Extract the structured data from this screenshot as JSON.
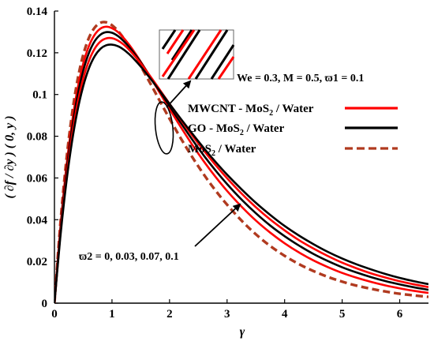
{
  "chart_data": {
    "type": "line",
    "xlabel": "γ",
    "ylabel": "( ∂f / ∂y ) ( 0, y )",
    "xlim": [
      0,
      6.5
    ],
    "ylim": [
      0,
      0.14
    ],
    "xticks": [
      "0",
      "1",
      "2",
      "3",
      "4",
      "5",
      "6"
    ],
    "yticks": [
      "0",
      "0.02",
      "0.04",
      "0.06",
      "0.08",
      "0.1",
      "0.12",
      "0.14"
    ],
    "grid": false,
    "legend_position": "top-right",
    "annotation_params": "We = 0.3, M = 0.5, ϖ1 = 0.1",
    "annotation_varpi2": "ϖ2 = 0, 0.03, 0.07, 0.1",
    "legend": [
      {
        "label": "MWCNT - MoS2 / Water",
        "color": "#ff0000",
        "style": "solid"
      },
      {
        "label": "GO - MoS2 / Water",
        "color": "#000000",
        "style": "solid"
      },
      {
        "label": "MoS2 / Water",
        "color": "#b03a1f",
        "style": "dashed"
      }
    ],
    "x": [
      0,
      0.1,
      0.2,
      0.3,
      0.4,
      0.5,
      0.6,
      0.7,
      0.8,
      0.9,
      1.0,
      1.1,
      1.2,
      1.3,
      1.4,
      1.5,
      1.6,
      1.7,
      1.8,
      1.9,
      2.0,
      2.2,
      2.4,
      2.6,
      2.8,
      3.0,
      3.25,
      3.5,
      3.75,
      4.0,
      4.25,
      4.5,
      4.75,
      5.0,
      5.25,
      5.5,
      5.75,
      6.0,
      6.25,
      6.5
    ],
    "series": [
      {
        "color": "#b03a1f",
        "style": "dashed",
        "values": [
          0.0,
          0.0371,
          0.0667,
          0.0896,
          0.1068,
          0.119,
          0.1272,
          0.1321,
          0.1344,
          0.1346,
          0.1332,
          0.1306,
          0.1271,
          0.123,
          0.1185,
          0.1136,
          0.1086,
          0.1036,
          0.0985,
          0.0934,
          0.0884,
          0.0788,
          0.0698,
          0.0615,
          0.054,
          0.0472,
          0.0396,
          0.033,
          0.0274,
          0.0227,
          0.0187,
          0.0154,
          0.0126,
          0.0103,
          0.0084,
          0.0069,
          0.0056,
          0.0045,
          0.0037,
          0.003
        ]
      },
      {
        "color": "#ff0000",
        "style": "solid",
        "values": [
          0.0,
          0.0351,
          0.0634,
          0.0856,
          0.1025,
          0.1148,
          0.1233,
          0.1287,
          0.1316,
          0.1325,
          0.1318,
          0.13,
          0.1272,
          0.1238,
          0.1199,
          0.1157,
          0.1113,
          0.1068,
          0.1022,
          0.0976,
          0.0931,
          0.0842,
          0.0757,
          0.0678,
          0.0605,
          0.0538,
          0.0463,
          0.0396,
          0.0338,
          0.0287,
          0.0243,
          0.0205,
          0.0173,
          0.0145,
          0.0122,
          0.0102,
          0.0085,
          0.0071,
          0.0059,
          0.0049
        ]
      },
      {
        "color": "#000000",
        "style": "solid",
        "values": [
          0.0,
          0.0337,
          0.061,
          0.0826,
          0.0992,
          0.1114,
          0.12,
          0.1256,
          0.1287,
          0.1299,
          0.1296,
          0.1281,
          0.1257,
          0.1227,
          0.1192,
          0.1154,
          0.1113,
          0.1072,
          0.1029,
          0.0987,
          0.0945,
          0.0862,
          0.0782,
          0.0706,
          0.0636,
          0.0571,
          0.0497,
          0.0431,
          0.0372,
          0.0321,
          0.0276,
          0.0236,
          0.0202,
          0.0172,
          0.0147,
          0.0125,
          0.0106,
          0.009,
          0.0076,
          0.0064
        ]
      },
      {
        "color": "#ff0000",
        "style": "solid",
        "values": [
          0.0,
          0.0322,
          0.0585,
          0.0794,
          0.0955,
          0.1076,
          0.1162,
          0.122,
          0.1254,
          0.1269,
          0.127,
          0.1259,
          0.124,
          0.1214,
          0.1183,
          0.1149,
          0.1112,
          0.1074,
          0.1035,
          0.0995,
          0.0956,
          0.0878,
          0.0802,
          0.073,
          0.0662,
          0.0599,
          0.0526,
          0.046,
          0.0401,
          0.0349,
          0.0302,
          0.0262,
          0.0226,
          0.0194,
          0.0167,
          0.0143,
          0.0123,
          0.0105,
          0.009,
          0.0077
        ]
      },
      {
        "color": "#000000",
        "style": "solid",
        "values": [
          0.0,
          0.031,
          0.0563,
          0.0765,
          0.0922,
          0.104,
          0.1126,
          0.1184,
          0.1219,
          0.1236,
          0.1239,
          0.1232,
          0.1216,
          0.1193,
          0.1165,
          0.1134,
          0.11,
          0.1065,
          0.1028,
          0.0992,
          0.0955,
          0.0882,
          0.0811,
          0.0742,
          0.0677,
          0.0616,
          0.0546,
          0.0481,
          0.0423,
          0.037,
          0.0324,
          0.0283,
          0.0246,
          0.0214,
          0.0186,
          0.0162,
          0.014,
          0.0121,
          0.0105,
          0.0091
        ]
      }
    ]
  }
}
